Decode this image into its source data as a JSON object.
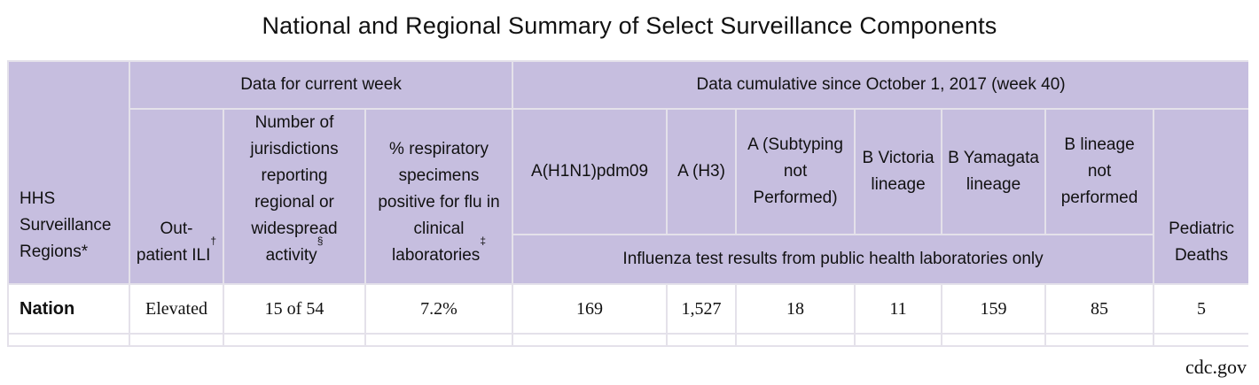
{
  "title": "National and Regional Summary of Select Surveillance Components",
  "header": {
    "region_col": "HHS Surveillance Regions*",
    "current_week": "Data for current week",
    "cumulative": "Data cumulative since October 1, 2017 (week 40)",
    "lab_note": "Influenza test results from public health laboratories only",
    "columns": {
      "ili": "Out-patient ILI",
      "ili_mark": "†",
      "jurisdictions": "Number of jurisdictions reporting regional or widespread activity",
      "jurisdictions_mark": "§",
      "pct_positive": "% respiratory specimens positive for flu in clinical laboratories",
      "pct_positive_mark": "‡",
      "h1n1": "A(H1N1)pdm09",
      "h3": "A (H3)",
      "a_not_subtyped": "A (Subtyping not Performed)",
      "b_victoria": "B Victoria lineage",
      "b_yamagata": "B Yamagata lineage",
      "b_lineage_not": "B lineage not performed",
      "pediatric": "Pediatric Deaths"
    }
  },
  "rows": [
    {
      "region": "Nation",
      "ili": "Elevated",
      "jurisdictions": "15 of 54",
      "pct_positive": "7.2%",
      "h1n1": "169",
      "h3": "1,527",
      "a_not_subtyped": "18",
      "b_victoria": "11",
      "b_yamagata": "159",
      "b_lineage_not": "85",
      "pediatric": "5"
    }
  ],
  "source": "cdc.gov",
  "colors": {
    "header_bg": "#c6bedf",
    "border": "#e4e1ea"
  }
}
